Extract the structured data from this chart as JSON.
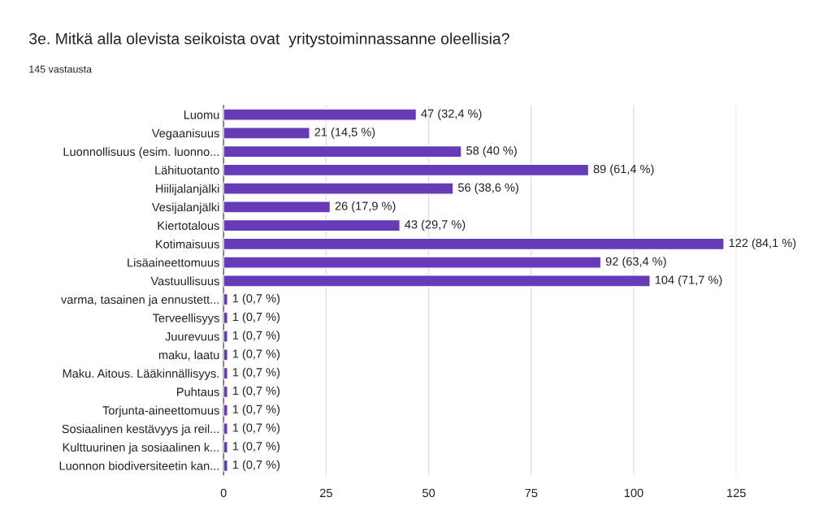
{
  "chart_data": {
    "type": "bar",
    "orientation": "horizontal",
    "title": "3e. Mitkä alla olevista seikoista ovat  yritystoiminnassanne oleellisia?",
    "subtitle": "145 vastausta",
    "categories": [
      "Luomu",
      "Vegaanisuus",
      "Luonnollisuus (esim. luonno...",
      "Lähituotanto",
      "Hiilijalanjälki",
      "Vesijalanjälki",
      "Kiertotalous",
      "Kotimaisuus",
      "Lisäaineettomuus",
      "Vastuullisuus",
      "varma, tasainen ja ennustett...",
      "Terveellisyys",
      "Juurevuus",
      "maku, laatu",
      "Maku. Aitous. Lääkinnällisyys.",
      "Puhtaus",
      "Torjunta-aineettomuus",
      "Sosiaalinen kestävyys ja reil...",
      "Kulttuurinen ja sosiaalinen k...",
      "Luonnon biodiversiteetin kan..."
    ],
    "values": [
      47,
      21,
      58,
      89,
      56,
      26,
      43,
      122,
      92,
      104,
      1,
      1,
      1,
      1,
      1,
      1,
      1,
      1,
      1,
      1
    ],
    "value_labels": [
      "47 (32,4 %)",
      "21 (14,5 %)",
      "58 (40 %)",
      "89 (61,4 %)",
      "56 (38,6 %)",
      "26 (17,9 %)",
      "43 (29,7 %)",
      "122 (84,1 %)",
      "92 (63,4 %)",
      "104 (71,7 %)",
      "1 (0,7 %)",
      "1 (0,7 %)",
      "1 (0,7 %)",
      "1 (0,7 %)",
      "1 (0,7 %)",
      "1 (0,7 %)",
      "1 (0,7 %)",
      "1 (0,7 %)",
      "1 (0,7 %)",
      "1 (0,7 %)"
    ],
    "color": "#673ab7",
    "xlim": [
      0,
      125
    ],
    "xticks": [
      0,
      25,
      50,
      75,
      100,
      125
    ],
    "grid": "x"
  }
}
